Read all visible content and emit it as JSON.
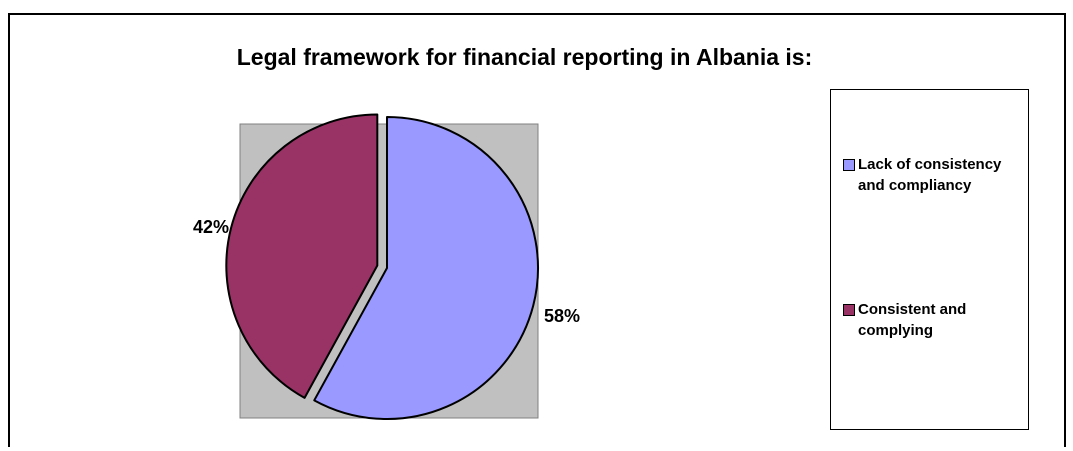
{
  "chart_data": {
    "type": "pie",
    "title": "Legal framework for financial reporting in Albania is:",
    "categories": [
      "Lack of consistency and compliancy",
      "Consistent and complying"
    ],
    "values": [
      58,
      42
    ],
    "data_labels": [
      "58%",
      "42%"
    ],
    "colors": [
      "#9999ff",
      "#993366"
    ],
    "exploded_slice": "Consistent and complying",
    "legend_position": "right",
    "plot_area_background": "#c0c0c0"
  }
}
